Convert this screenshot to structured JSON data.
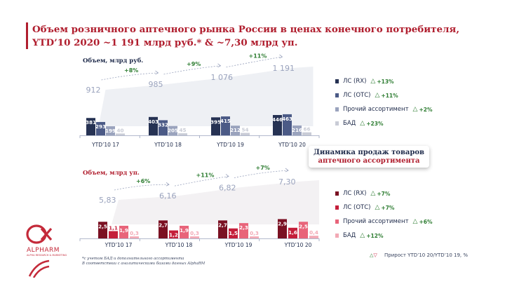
{
  "title": {
    "line1": "Объем розничного аптечного рынка России в ценах конечного потребителя,",
    "line2": "YTD’10 2020 ~1 191 млрд руб.* & ~7,30 млрд уп."
  },
  "colors": {
    "accent_red": "#b01e2e",
    "navy": "#263253",
    "slate": "#4b5a86",
    "gray_blue": "#9aa3bd",
    "light_gray": "#c9ccd6",
    "maroon": "#7a1022",
    "red": "#c41e3a",
    "pink": "#e8647a",
    "light_pink": "#f2a9b5",
    "growth_green": "#2e7d32"
  },
  "chart_data": [
    {
      "type": "bar",
      "subtype": "grouped-with-total",
      "ylabel": "Объем, млрд руб.",
      "categories": [
        "YTD’10 17",
        "YTD’10 18",
        "YTD’10 19",
        "YTD’10 20"
      ],
      "series": [
        {
          "name": "ЛС (RX)",
          "values": [
            381,
            403,
            395,
            446
          ],
          "value_labels": [
            "381",
            "403",
            "395",
            "446"
          ],
          "growth": "+13%",
          "color": "#263253"
        },
        {
          "name": "ЛС (ОТС)",
          "values": [
            293,
            332,
            415,
            463
          ],
          "value_labels": [
            "293",
            "332",
            "415",
            "463"
          ],
          "growth": "+11%",
          "color": "#4b5a86"
        },
        {
          "name": "Прочий ассортимент",
          "values": [
            199,
            205,
            212,
            216
          ],
          "value_labels": [
            "199",
            "205",
            "212",
            "216"
          ],
          "growth": "+2%",
          "color": "#9aa3bd"
        },
        {
          "name": "БАД",
          "values": [
            40,
            45,
            54,
            66
          ],
          "value_labels": [
            "40",
            "45",
            "54",
            "66"
          ],
          "growth": "+23%",
          "color": "#c9ccd6"
        }
      ],
      "totals": [
        912,
        985,
        1076,
        1191
      ],
      "total_labels": [
        "912",
        "985",
        "1 076",
        "1 191"
      ],
      "yoy_growth": [
        "+8%",
        "+9%",
        "+11%"
      ],
      "legend_position": "right"
    },
    {
      "type": "bar",
      "subtype": "grouped-with-total",
      "ylabel": "Объем, млрд уп.",
      "categories": [
        "YTD’10 17",
        "YTD’10 18",
        "YTD’10 19",
        "YTD’10 20"
      ],
      "series": [
        {
          "name": "ЛС (RX)",
          "values": [
            2.5,
            2.7,
            2.7,
            2.9
          ],
          "value_labels": [
            "2,5",
            "2,7",
            "2,7",
            "2,9"
          ],
          "growth": "+7%",
          "color": "#7a1022"
        },
        {
          "name": "ЛС (ОТС)",
          "values": [
            1.1,
            1.2,
            1.5,
            1.6
          ],
          "value_labels": [
            "1,1",
            "1,2",
            "1,5",
            "1,6"
          ],
          "growth": "+7%",
          "color": "#c41e3a"
        },
        {
          "name": "Прочий ассортимент",
          "values": [
            1.9,
            1.9,
            2.3,
            2.5
          ],
          "value_labels": [
            "1,9",
            "1,9",
            "2,3",
            "2,5"
          ],
          "growth": "+6%",
          "color": "#e8647a"
        },
        {
          "name": "БАД",
          "values": [
            0.3,
            0.3,
            0.3,
            0.4
          ],
          "value_labels": [
            "0,3",
            "0,3",
            "0,3",
            "0,4"
          ],
          "growth": "+12%",
          "color": "#f2a9b5"
        }
      ],
      "totals": [
        5.83,
        6.16,
        6.82,
        7.3
      ],
      "total_labels": [
        "5,83",
        "6,16",
        "6,82",
        "7,30"
      ],
      "yoy_growth": [
        "+6%",
        "+11%",
        "+7%"
      ],
      "legend_position": "right"
    }
  ],
  "subtitle_card": {
    "line1": "Динамика продаж товаров",
    "line2": "аптечного ассортимента"
  },
  "logo": {
    "name": "ALPHARM",
    "tagline": "ALPHA RESEARCH & MARKETING"
  },
  "footnote": {
    "line1": "*с учетом БАД и дополнительного ассортимента",
    "line2": "В соответствии с аналитическими базами данных AlphaRM"
  },
  "footer_legend": {
    "text": "Прирост YTD’10 20/YTD’10 19, %"
  }
}
